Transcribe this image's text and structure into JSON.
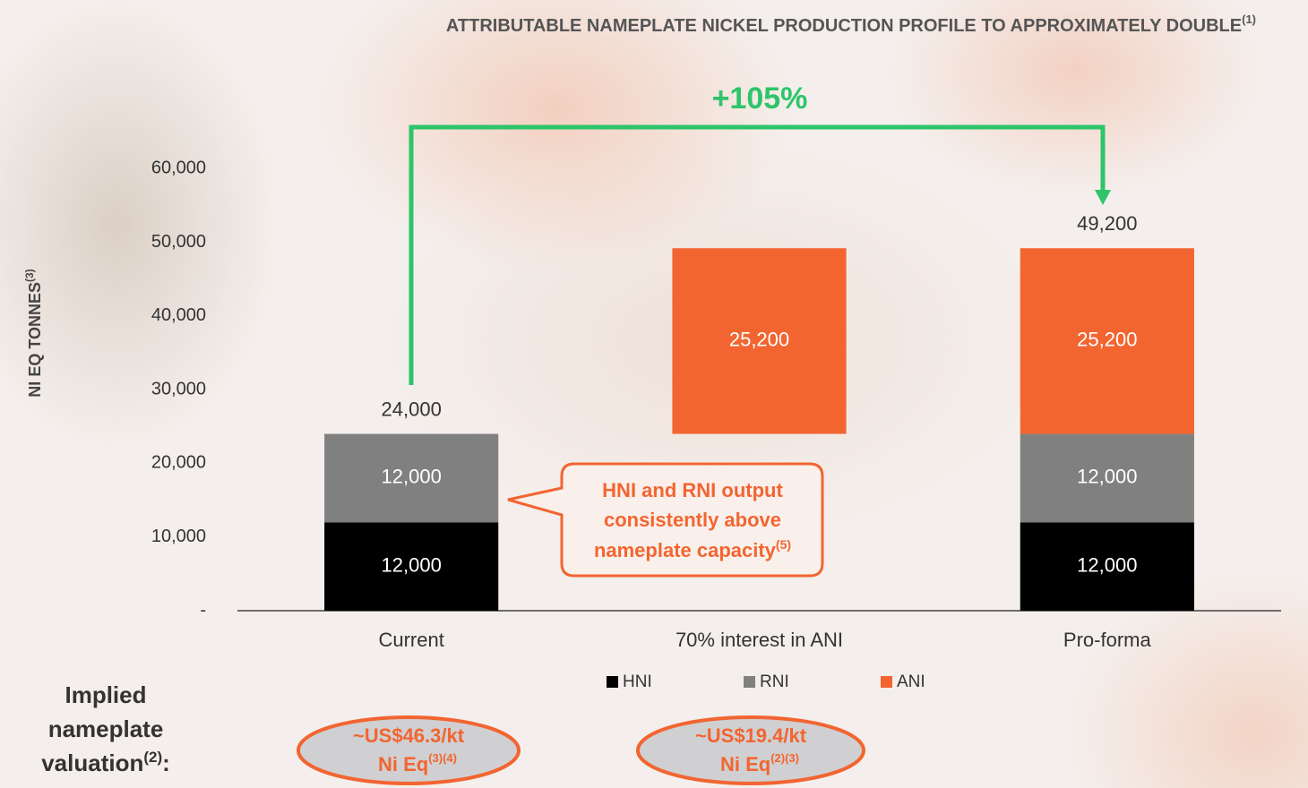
{
  "chart_data": {
    "type": "waterfall",
    "title": "ATTRIBUTABLE NAMEPLATE NICKEL PRODUCTION PROFILE TO APPROXIMATELY DOUBLE",
    "title_note": "(1)",
    "y_label": "NI EQ TONNES",
    "y_label_note": "(3)",
    "categories": [
      "Current",
      "70% interest in ANI",
      "Pro-forma"
    ],
    "series": [
      {
        "name": "HNI",
        "color": "#000000",
        "values": [
          12000,
          null,
          12000
        ],
        "value_labels": [
          "12,000",
          null,
          "12,000"
        ]
      },
      {
        "name": "RNI",
        "color": "#808080",
        "values": [
          12000,
          null,
          12000
        ],
        "value_labels": [
          "12,000",
          null,
          "12,000"
        ]
      },
      {
        "name": "ANI",
        "color": "#f26531",
        "values": [
          null,
          25200,
          25200
        ],
        "value_labels": [
          null,
          "25,200",
          "25,200"
        ]
      }
    ],
    "totals": [
      24000,
      null,
      49200
    ],
    "total_labels": [
      "24,000",
      null,
      "49,200"
    ],
    "ylim": [
      0,
      66000
    ],
    "yticks": [
      {
        "value": 0,
        "label": "-"
      },
      {
        "value": 10000,
        "label": "10,000"
      },
      {
        "value": 20000,
        "label": "20,000"
      },
      {
        "value": 30000,
        "label": "30,000"
      },
      {
        "value": 40000,
        "label": "40,000"
      },
      {
        "value": 50000,
        "label": "50,000"
      },
      {
        "value": 60000,
        "label": "60,000"
      }
    ],
    "grid": false,
    "growth_label": "+105%",
    "callout": {
      "lines": [
        "HNI and RNI output",
        "consistently above",
        "nameplate capacity"
      ],
      "note": "(5)"
    },
    "valuation": {
      "label_lines": [
        "Implied",
        "nameplate",
        "valuation"
      ],
      "label_note": "(2)",
      "label_suffix": ":",
      "items": [
        {
          "price": "~US$46.3/kt",
          "unit": "Ni Eq",
          "note": "(3)(4)"
        },
        {
          "price": "~US$19.4/kt",
          "unit": "Ni Eq",
          "note": "(2)(3)"
        }
      ]
    }
  }
}
